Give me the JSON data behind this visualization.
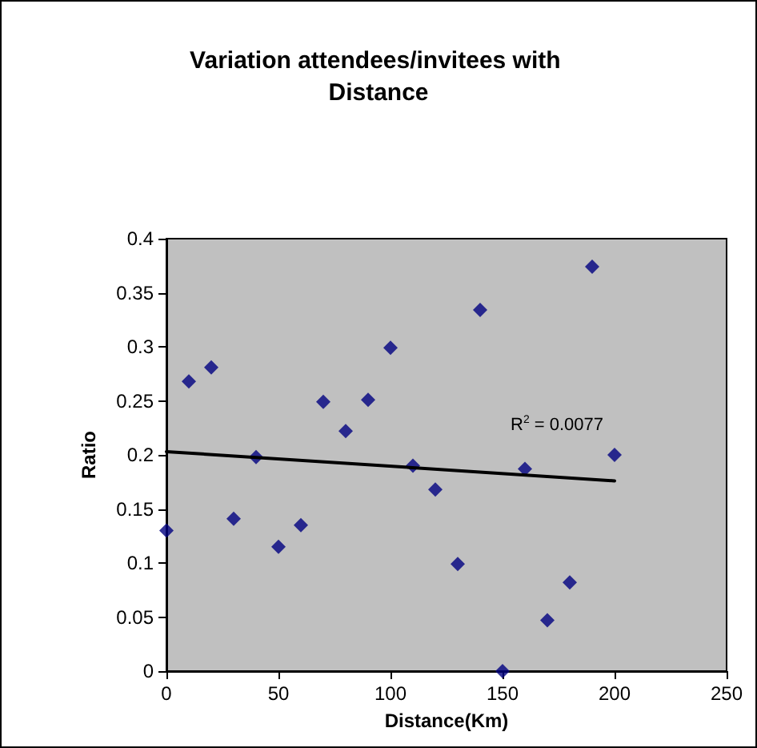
{
  "chart_data": {
    "type": "scatter",
    "title": "Variation attendees/invitees with Distance",
    "xlabel": "Distance(Km)",
    "ylabel": "Ratio",
    "series": [
      {
        "marker": "diamond",
        "color": "#000080",
        "x": [
          0,
          10,
          20,
          30,
          40,
          50,
          60,
          70,
          80,
          90,
          100,
          110,
          120,
          130,
          140,
          150,
          160,
          170,
          180,
          190,
          200
        ],
        "values": [
          0.13,
          0.268,
          0.281,
          0.141,
          0.198,
          0.115,
          0.135,
          0.249,
          0.222,
          0.251,
          0.299,
          0.19,
          0.168,
          0.099,
          0.334,
          0,
          0.187,
          0.047,
          0.082,
          0.374,
          0.2
        ]
      },
      {
        "type": "line",
        "color": "#000000",
        "x": [
          0,
          200
        ],
        "values": [
          0.203,
          0.176
        ]
      }
    ],
    "annotations": [
      "R$^{2}$ = 0.0077"
    ],
    "xlim": [
      0,
      250
    ],
    "xticks": [
      0,
      50,
      100,
      150,
      200,
      250
    ],
    "ylim": [
      0,
      0.4
    ],
    "yticks": [
      0,
      0.05,
      0.1,
      0.15,
      0.2,
      0.25,
      0.3,
      0.35,
      0.4
    ],
    "grid": false
  }
}
